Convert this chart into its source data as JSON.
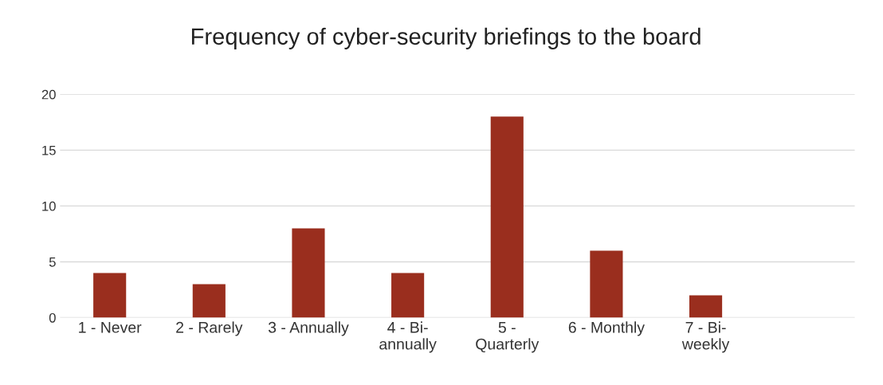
{
  "chart_data": {
    "type": "bar",
    "title": "Frequency of cyber-security briefings to the board",
    "categories": [
      "1 - Never",
      "2 - Rarely",
      "3 - Annually",
      "4 - Bi-\nannually",
      "5 -\nQuarterly",
      "6 - Monthly",
      "7 - Bi-\nweekly",
      null
    ],
    "values": [
      4,
      3,
      8,
      4,
      18,
      6,
      2,
      null
    ],
    "color": "#9a2e1e",
    "ylim": [
      0,
      20
    ],
    "yticks": [
      0,
      5,
      10,
      15,
      20
    ],
    "grid": "y",
    "legend": false
  }
}
